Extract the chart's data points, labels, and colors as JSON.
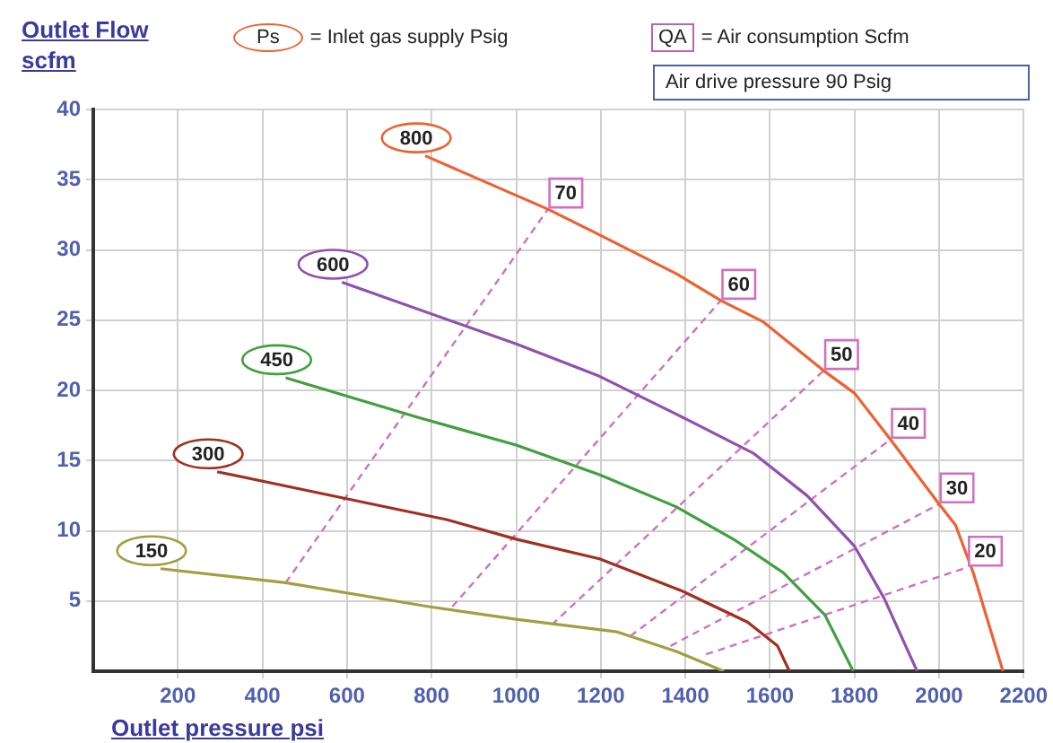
{
  "chart_data": {
    "type": "line",
    "xlabel": "Outlet pressure   psi",
    "ylabel": "Outlet Flow scfm",
    "annotations": [
      "Ps = Inlet gas supply  Psig",
      "QA = Air consumption  Scfm",
      "Air drive pressure  90 Psig"
    ],
    "xlim": [
      0,
      2200
    ],
    "xticks": [
      200,
      400,
      600,
      800,
      1000,
      1200,
      1400,
      1600,
      1800,
      2000,
      2200
    ],
    "ylim": [
      0,
      40
    ],
    "yticks": [
      5,
      10,
      15,
      20,
      25,
      30,
      35,
      40
    ],
    "grid": true,
    "legend": false,
    "marker": "none",
    "series": [
      {
        "name": "800",
        "color": "#f06030",
        "line_style": "solid",
        "x": [
          785,
          1075,
          1182,
          1379,
          1484,
          1583,
          1727,
          1800,
          1885,
          2000,
          2039,
          2081,
          2151
        ],
        "values": [
          36.7,
          32.9,
          31.3,
          28.3,
          26.4,
          24.9,
          21.4,
          19.8,
          16.5,
          11.9,
          10.4,
          7.0,
          0
        ]
      },
      {
        "name": "600",
        "color": "#9050b0",
        "line_style": "solid",
        "x": [
          588,
          1000,
          1197,
          1379,
          1562,
          1688,
          1800,
          1870,
          1948
        ],
        "values": [
          27.7,
          23.3,
          21.0,
          18.3,
          15.5,
          12.5,
          8.9,
          5.2,
          0
        ]
      },
      {
        "name": "450",
        "color": "#40a040",
        "line_style": "solid",
        "x": [
          455,
          765,
          1000,
          1197,
          1379,
          1519,
          1632,
          1730,
          1797
        ],
        "values": [
          20.9,
          18.1,
          16.1,
          14.0,
          11.7,
          9.3,
          7.0,
          4.0,
          0
        ]
      },
      {
        "name": "300",
        "color": "#a03020",
        "line_style": "solid",
        "x": [
          293,
          596,
          835,
          1000,
          1197,
          1393,
          1547,
          1618,
          1646
        ],
        "values": [
          14.2,
          12.3,
          10.8,
          9.4,
          8.0,
          5.7,
          3.5,
          1.8,
          0
        ]
      },
      {
        "name": "150",
        "color": "#a0a040",
        "line_style": "solid",
        "x": [
          159,
          455,
          793,
          1000,
          1239,
          1379,
          1491
        ],
        "values": [
          7.3,
          6.3,
          4.6,
          3.7,
          2.8,
          1.4,
          0
        ]
      },
      {
        "name": "70",
        "color": "#d070c0",
        "line_style": "dashed",
        "x": [
          455,
          1075
        ],
        "values": [
          6.3,
          32.9
        ]
      },
      {
        "name": "60",
        "color": "#d070c0",
        "line_style": "dashed",
        "x": [
          849,
          1484
        ],
        "values": [
          4.6,
          26.4
        ]
      },
      {
        "name": "50",
        "color": "#d070c0",
        "line_style": "dashed",
        "x": [
          1084,
          1727
        ],
        "values": [
          3.3,
          21.4
        ]
      },
      {
        "name": "40",
        "color": "#d070c0",
        "line_style": "dashed",
        "x": [
          1270,
          1885
        ],
        "values": [
          2.5,
          16.5
        ]
      },
      {
        "name": "30",
        "color": "#d070c0",
        "line_style": "dashed",
        "x": [
          1365,
          2000
        ],
        "values": [
          1.8,
          11.9
        ]
      },
      {
        "name": "20",
        "color": "#d070c0",
        "line_style": "dashed",
        "x": [
          1449,
          2067
        ],
        "values": [
          1.2,
          7.4
        ]
      }
    ]
  }
}
